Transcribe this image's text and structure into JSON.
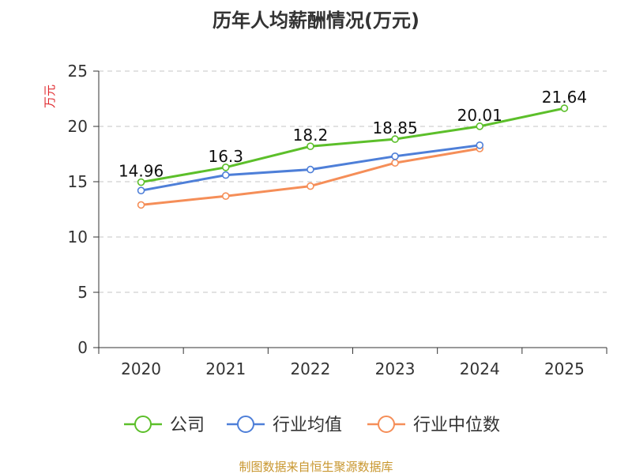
{
  "chart_data": {
    "type": "line",
    "title": "历年人均薪酬情况(万元)",
    "ylabel": "万元",
    "xlabel": "",
    "categories": [
      "2020",
      "2021",
      "2022",
      "2023",
      "2024",
      "2025"
    ],
    "ylim": [
      0,
      25
    ],
    "yticks": [
      0,
      5,
      10,
      15,
      20,
      25
    ],
    "grid": true,
    "legend_position": "bottom",
    "series": [
      {
        "name": "公司",
        "color": "#5cbf2a",
        "values": [
          14.96,
          16.3,
          18.2,
          18.85,
          20.01,
          21.64
        ]
      },
      {
        "name": "行业均值",
        "color": "#4e7fd8",
        "values": [
          14.2,
          15.6,
          16.1,
          17.3,
          18.3,
          null
        ]
      },
      {
        "name": "行业中位数",
        "color": "#f58e58",
        "values": [
          12.9,
          13.7,
          14.6,
          16.7,
          18.0,
          null
        ]
      }
    ],
    "data_labels": [
      "14.96",
      "16.3",
      "18.2",
      "18.85",
      "20.01",
      "21.64"
    ]
  },
  "source": "制图数据来自恒生聚源数据库"
}
